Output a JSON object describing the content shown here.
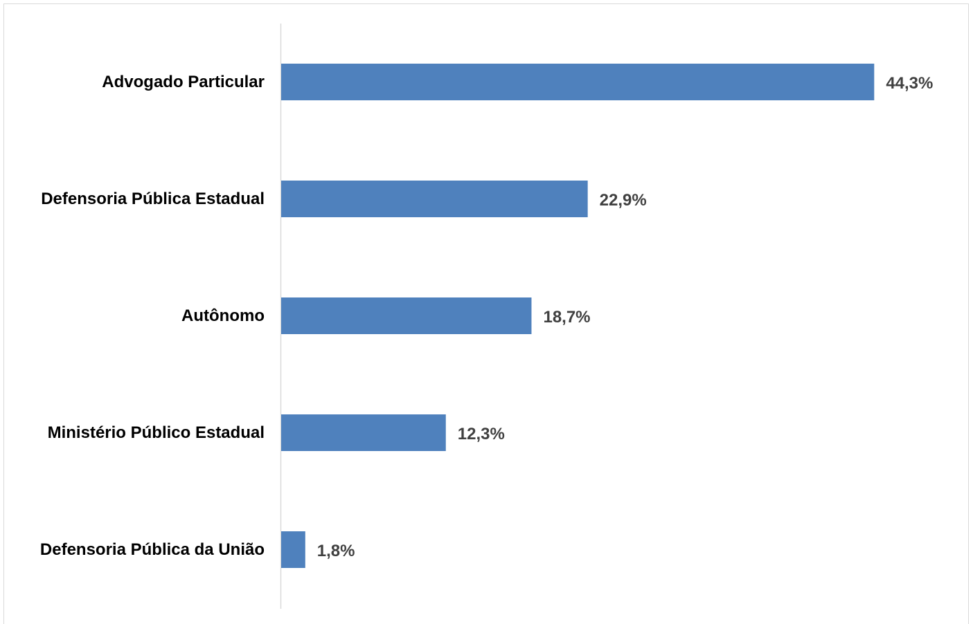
{
  "chart_data": {
    "type": "bar",
    "orientation": "horizontal",
    "categories": [
      "Advogado Particular",
      "Defensoria Pública Estadual",
      "Autônomo",
      "Ministério Público Estadual",
      "Defensoria Pública da União"
    ],
    "values": [
      44.3,
      22.9,
      18.7,
      12.3,
      1.8
    ],
    "value_labels": [
      "44,3%",
      "22,9%",
      "18,7%",
      "12,3%",
      "1,8%"
    ],
    "xlim": [
      0,
      50
    ],
    "grid": false,
    "legend": "none",
    "colors": {
      "bar": "#4f81bd",
      "axis": "#d9d9d9",
      "category_text": "#000000",
      "value_text": "#404040"
    }
  }
}
